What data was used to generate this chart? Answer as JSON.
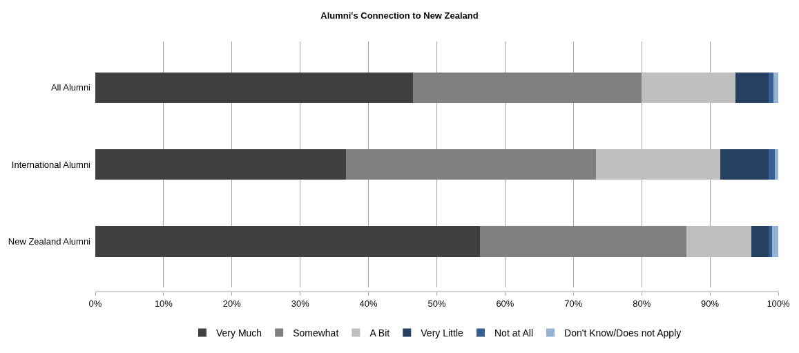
{
  "chart_data": {
    "type": "bar",
    "orientation": "horizontal",
    "stacked": true,
    "title": "Alumni's Connection to New Zealand",
    "categories": [
      "All Alumni",
      "International Alumni",
      "New Zealand Alumni"
    ],
    "series": [
      {
        "name": "Very Much",
        "color": "#404040",
        "values": [
          46.5,
          36.7,
          56.3
        ]
      },
      {
        "name": "Somewhat",
        "color": "#808080",
        "values": [
          33.5,
          36.6,
          30.3
        ]
      },
      {
        "name": "A Bit",
        "color": "#bfbfbf",
        "values": [
          13.7,
          18.2,
          9.5
        ]
      },
      {
        "name": "Very Little",
        "color": "#254061",
        "values": [
          4.9,
          7.1,
          2.5
        ]
      },
      {
        "name": "Not at All",
        "color": "#366092",
        "values": [
          0.7,
          0.9,
          0.5
        ]
      },
      {
        "name": "Don't Know/Does not Apply",
        "color": "#95b3d7",
        "values": [
          0.7,
          0.5,
          0.9
        ]
      }
    ],
    "xlim": [
      0,
      100
    ],
    "xticks": [
      {
        "value": 0,
        "label": "0%"
      },
      {
        "value": 10,
        "label": "10%"
      },
      {
        "value": 20,
        "label": "20%"
      },
      {
        "value": 30,
        "label": "30%"
      },
      {
        "value": 40,
        "label": "40%"
      },
      {
        "value": 50,
        "label": "50%"
      },
      {
        "value": 60,
        "label": "60%"
      },
      {
        "value": 70,
        "label": "70%"
      },
      {
        "value": 80,
        "label": "80%"
      },
      {
        "value": 90,
        "label": "90%"
      },
      {
        "value": 100,
        "label": "100%"
      }
    ],
    "grid": "x",
    "legend": "bottom"
  }
}
